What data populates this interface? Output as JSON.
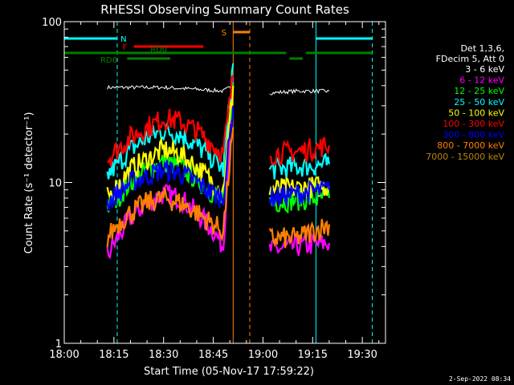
{
  "chart_data": {
    "type": "line",
    "title": "RHESSI Observing Summary Count Rates",
    "xlabel": "Start Time (05-Nov-17 17:59:22)",
    "ylabel": "Count Rate (s⁻¹ detector⁻¹)",
    "y_scale": "log",
    "ylim": [
      1,
      100
    ],
    "xlim": [
      "18:00",
      "19:37"
    ],
    "x_tick_labels": [
      "18:00",
      "18:15",
      "18:30",
      "18:45",
      "19:00",
      "19:15",
      "19:30"
    ],
    "y_tick_labels": [
      "1",
      "10",
      "100"
    ],
    "legend_header": [
      "Det 1,3,6,",
      "FDecim 5, Att 0"
    ],
    "legend_position": "right",
    "footer": "2-Sep-2022 08:34",
    "annotations": {
      "N": "N",
      "F": "F",
      "RD0": "RD0",
      "RD6": "RD6",
      "S": "S"
    },
    "series": [
      {
        "name": "3 - 6 keV",
        "color": "#ffffff",
        "segments": [
          {
            "x": [
              "18:13",
              "18:15",
              "18:20",
              "18:30",
              "18:40",
              "18:48",
              "18:51"
            ],
            "y": [
              39,
              39,
              39,
              39,
              38,
              37,
              40
            ]
          },
          {
            "x": [
              "19:02",
              "19:10",
              "19:20"
            ],
            "y": [
              36,
              37,
              37
            ]
          }
        ]
      },
      {
        "name": "6 - 12 keV",
        "color": "#ff00ff",
        "segments": [
          {
            "x": [
              "18:13",
              "18:16",
              "18:20",
              "18:25",
              "18:30",
              "18:35",
              "18:40",
              "18:45",
              "18:48",
              "18:51"
            ],
            "y": [
              3.5,
              4.5,
              6,
              7.5,
              8.5,
              8,
              6.5,
              5,
              4,
              44
            ]
          },
          {
            "x": [
              "19:02",
              "19:10",
              "19:20"
            ],
            "y": [
              3.8,
              4,
              4.2
            ]
          }
        ]
      },
      {
        "name": "12 - 25 keV",
        "color": "#00ff00",
        "segments": [
          {
            "x": [
              "18:13",
              "18:16",
              "18:20",
              "18:25",
              "18:30",
              "18:35",
              "18:40",
              "18:45",
              "18:48",
              "18:51"
            ],
            "y": [
              7,
              8,
              10,
              12,
              13.5,
              12.5,
              10.5,
              8.5,
              7.5,
              42
            ]
          },
          {
            "x": [
              "19:02",
              "19:10",
              "19:20"
            ],
            "y": [
              7.5,
              7.8,
              8
            ]
          }
        ]
      },
      {
        "name": "25 - 50 keV",
        "color": "#00ffff",
        "segments": [
          {
            "x": [
              "18:13",
              "18:16",
              "18:20",
              "18:25",
              "18:30",
              "18:35",
              "18:40",
              "18:45",
              "18:48",
              "18:51"
            ],
            "y": [
              11,
              13,
              16,
              19,
              21,
              20,
              17,
              14,
              12,
              55
            ]
          },
          {
            "x": [
              "19:02",
              "19:10",
              "19:20"
            ],
            "y": [
              12,
              12.5,
              13
            ]
          }
        ]
      },
      {
        "name": "50 - 100 keV",
        "color": "#ffff00",
        "segments": [
          {
            "x": [
              "18:13",
              "18:16",
              "18:20",
              "18:25",
              "18:30",
              "18:35",
              "18:40",
              "18:45",
              "18:48",
              "18:51"
            ],
            "y": [
              8,
              9.5,
              12,
              14,
              16,
              15,
              12.5,
              10,
              9,
              40
            ]
          },
          {
            "x": [
              "19:02",
              "19:10",
              "19:20"
            ],
            "y": [
              9,
              9.2,
              9.5
            ]
          }
        ]
      },
      {
        "name": "100 - 300 keV",
        "color": "#ff0000",
        "segments": [
          {
            "x": [
              "18:13",
              "18:16",
              "18:20",
              "18:25",
              "18:30",
              "18:35",
              "18:40",
              "18:45",
              "18:48",
              "18:51"
            ],
            "y": [
              14,
              16,
              19,
              22,
              25,
              24,
              21,
              17,
              15,
              46
            ]
          },
          {
            "x": [
              "19:02",
              "19:10",
              "19:20"
            ],
            "y": [
              15,
              15.5,
              17
            ]
          }
        ]
      },
      {
        "name": "300 - 800 keV",
        "color": "#0000ff",
        "segments": [
          {
            "x": [
              "18:13",
              "18:16",
              "18:20",
              "18:25",
              "18:30",
              "18:35",
              "18:40",
              "18:45",
              "18:48",
              "18:51"
            ],
            "y": [
              7.5,
              8.5,
              10,
              11,
              12,
              11.5,
              10,
              8.5,
              8,
              30
            ]
          },
          {
            "x": [
              "19:02",
              "19:10",
              "19:20"
            ],
            "y": [
              8,
              8.5,
              9
            ]
          }
        ]
      },
      {
        "name": "800 - 7000 keV",
        "color": "#ff8000",
        "segments": [
          {
            "x": [
              "18:13",
              "18:16",
              "18:20",
              "18:25",
              "18:30",
              "18:35",
              "18:40",
              "18:45",
              "18:48",
              "18:51"
            ],
            "y": [
              4.5,
              5.5,
              6.5,
              7.5,
              8,
              7.5,
              6.5,
              5.5,
              5,
              22
            ]
          },
          {
            "x": [
              "19:02",
              "19:10",
              "19:20"
            ],
            "y": [
              4.5,
              4.5,
              5.5
            ]
          }
        ]
      },
      {
        "name": "7000 - 15000 keV",
        "color": "#b8860b",
        "segments": []
      }
    ],
    "flag_bars": [
      {
        "label": "N",
        "color": "#00ffff",
        "segments": [
          [
            "18:00",
            "18:16"
          ],
          [
            "19:16",
            "19:33"
          ]
        ]
      },
      {
        "label": "F",
        "color": "#ff0000",
        "segments": [
          [
            "18:21",
            "18:42"
          ]
        ]
      },
      {
        "label": "RD0",
        "color": "#008000",
        "segments": [
          [
            "18:00",
            "19:07"
          ],
          [
            "19:13",
            "19:33"
          ]
        ]
      },
      {
        "label": "RD6",
        "color": "#008000",
        "segments": [
          [
            "18:19",
            "18:32"
          ],
          [
            "19:08",
            "19:12"
          ]
        ]
      },
      {
        "label": "S",
        "color": "#ff8000",
        "segments": [
          [
            "18:51",
            "18:56"
          ]
        ]
      }
    ],
    "vlines": [
      {
        "t": "18:00",
        "color": "#00ffff",
        "style": "solid"
      },
      {
        "t": "18:16",
        "color": "#00ffff",
        "style": "dashed"
      },
      {
        "t": "18:51",
        "color": "#ff8000",
        "style": "solid"
      },
      {
        "t": "18:56",
        "color": "#ff8000",
        "style": "dashed"
      },
      {
        "t": "19:16",
        "color": "#00ffff",
        "style": "solid"
      },
      {
        "t": "19:33",
        "color": "#00ffff",
        "style": "dashed"
      }
    ]
  }
}
